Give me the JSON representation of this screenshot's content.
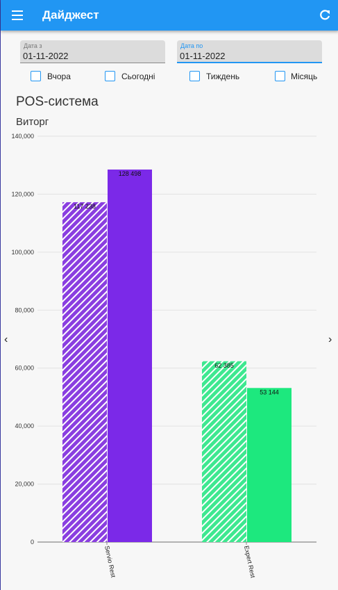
{
  "app": {
    "title": "Дайджест",
    "menu_icon": "menu-icon",
    "refresh_icon": "refresh-icon",
    "accent": "#2196f3"
  },
  "filters": {
    "date_from": {
      "label": "Дата з",
      "value": "01-11-2022"
    },
    "date_to": {
      "label": "Дата по",
      "value": "01-11-2022"
    },
    "periods": [
      {
        "label": "Вчора",
        "checked": false
      },
      {
        "label": "Сьогодні",
        "checked": false
      },
      {
        "label": "Тиждень",
        "checked": false
      },
      {
        "label": "Місяць",
        "checked": false
      }
    ]
  },
  "section": {
    "title": "POS-система",
    "subtitle": "Виторг"
  },
  "chart_data": {
    "type": "bar",
    "categories": [
      "Servio Rest",
      "Expert Rest"
    ],
    "series": [
      {
        "values": [
          117238,
          62385
        ],
        "pattern": "hatched",
        "colors": [
          "#8a3ee0",
          "#3ee890"
        ]
      },
      {
        "values": [
          128498,
          53144
        ],
        "pattern": "solid",
        "colors": [
          "#7b29e8",
          "#1de87e"
        ]
      }
    ],
    "value_labels": [
      [
        "117 238",
        "62 385"
      ],
      [
        "128 498",
        "53 144"
      ]
    ],
    "yticks": [
      "0",
      "20,000",
      "40,000",
      "60,000",
      "80,000",
      "100,000",
      "120,000",
      "140,000"
    ],
    "ylim": [
      0,
      140000
    ],
    "grid": true
  }
}
